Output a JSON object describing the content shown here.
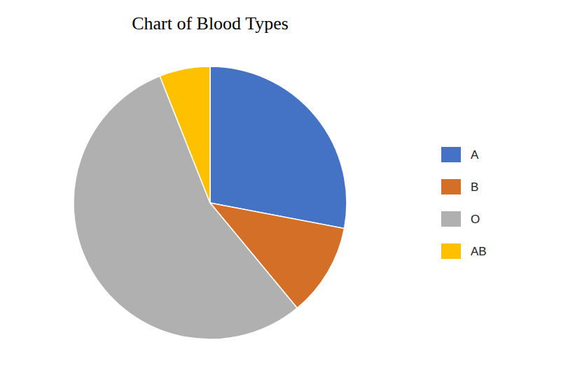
{
  "chart_data": {
    "type": "pie",
    "title": "Chart of Blood Types",
    "categories": [
      "A",
      "B",
      "O",
      "AB"
    ],
    "values": [
      28,
      11,
      55,
      6
    ],
    "colors": [
      "#4472C4",
      "#D46F28",
      "#B0B0B0",
      "#FFC000"
    ],
    "legend": "right"
  }
}
